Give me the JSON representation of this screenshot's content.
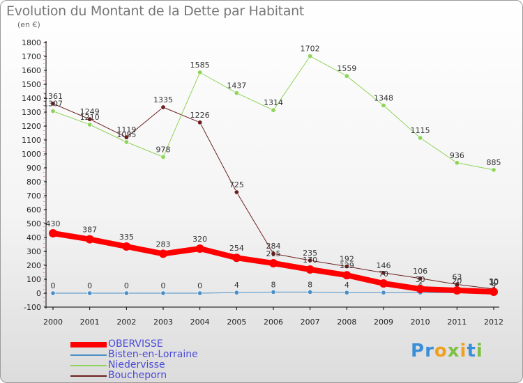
{
  "title": "Evolution du Montant de la Dette par Habitant",
  "unit_label": "(en €)",
  "logo": {
    "parts": [
      {
        "ch": "P",
        "color": "#3a8fd6"
      },
      {
        "ch": "r",
        "color": "#3a8fd6"
      },
      {
        "ch": "o",
        "color": "#f0a020"
      },
      {
        "ch": "x",
        "color": "#7cc142"
      },
      {
        "ch": "i",
        "color": "#f0a020"
      },
      {
        "ch": "t",
        "color": "#3a8fd6"
      },
      {
        "ch": "i",
        "color": "#7cc142"
      }
    ]
  },
  "chart_data": {
    "type": "line",
    "title": "Evolution du Montant de la Dette par Habitant",
    "ylabel": "(en €)",
    "x": [
      2000,
      2001,
      2002,
      2003,
      2004,
      2005,
      2006,
      2007,
      2008,
      2009,
      2010,
      2011,
      2012
    ],
    "ylim": [
      -100,
      1800
    ],
    "ytick_step": 100,
    "grid": false,
    "legend_position": "bottom-left",
    "series": [
      {
        "name": "Boucheporn",
        "color": "#6b1e1e",
        "width": 1,
        "values": [
          1361,
          1249,
          1119,
          1335,
          1226,
          725,
          284,
          235,
          192,
          146,
          106,
          63,
          30
        ]
      },
      {
        "name": "Niedervisse",
        "color": "#8fd45a",
        "width": 1,
        "values": [
          1307,
          1210,
          1085,
          978,
          1585,
          1437,
          1314,
          1702,
          1559,
          1348,
          1115,
          936,
          885
        ]
      },
      {
        "name": "Bisten-en-Lorraine",
        "color": "#4a8fc7",
        "width": 1,
        "values": [
          0,
          0,
          0,
          0,
          0,
          4,
          8,
          8,
          4,
          4,
          4,
          4,
          4
        ]
      },
      {
        "name": "OBERVISSE",
        "color": "#ff0000",
        "width": 8,
        "values": [
          430,
          387,
          335,
          283,
          320,
          254,
          215,
          170,
          129,
          70,
          30,
          20,
          10
        ]
      }
    ],
    "legend_order": [
      "OBERVISSE",
      "Bisten-en-Lorraine",
      "Niedervisse",
      "Boucheporn"
    ]
  }
}
